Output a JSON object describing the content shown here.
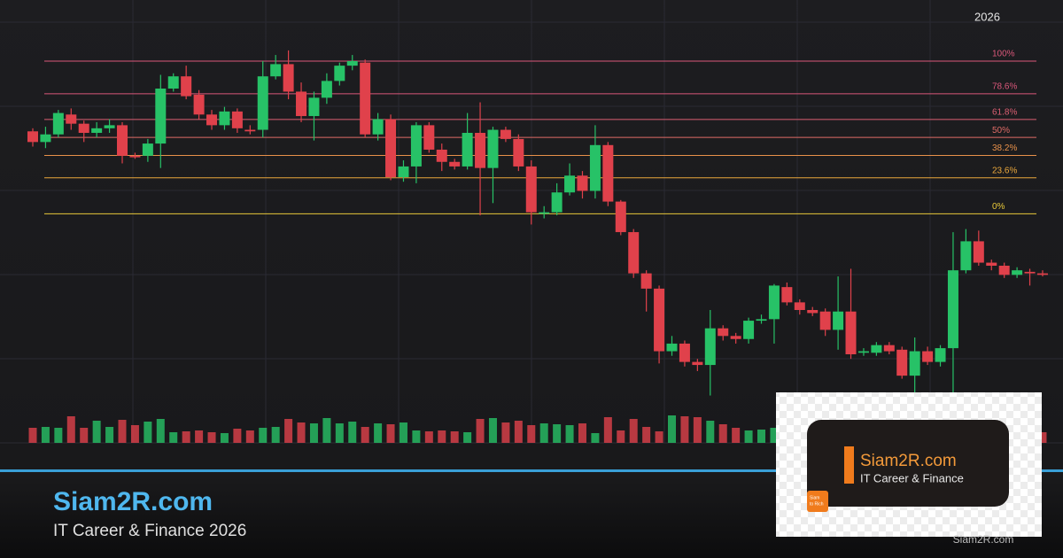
{
  "chart_data": {
    "type": "candlestick",
    "xlabel": "2026",
    "up_color": "#27c267",
    "down_color": "#e0414b",
    "ylim": [
      -150,
      140
    ],
    "open": [
      54,
      47,
      52,
      65,
      59,
      53,
      56,
      58,
      38,
      38,
      46,
      82,
      90,
      78,
      65,
      58,
      67,
      55,
      55,
      90,
      98,
      80,
      64,
      76,
      87,
      97,
      99,
      52,
      62,
      24,
      31,
      58,
      42,
      34,
      31,
      53,
      30,
      55,
      49,
      31,
      0,
      1,
      14,
      25,
      15,
      45,
      8,
      -12,
      -39,
      -49,
      -90,
      -85,
      -97,
      -99,
      -75,
      -80,
      -82,
      -70,
      -69,
      -48,
      -58,
      -63,
      -64,
      -76,
      -64,
      -91,
      -91,
      -86,
      -89,
      -106,
      -90,
      -97,
      -88,
      -37,
      -18,
      -32,
      -34,
      -40,
      -38,
      -39
    ],
    "high": [
      56,
      57,
      68,
      69,
      61,
      60,
      62,
      60,
      40,
      49,
      91,
      92,
      97,
      81,
      68,
      70,
      69,
      58,
      100,
      104,
      107,
      86,
      80,
      92,
      99,
      104,
      101,
      66,
      65,
      35,
      60,
      60,
      46,
      36,
      66,
      73,
      57,
      57,
      52,
      35,
      5,
      20,
      33,
      28,
      58,
      47,
      9,
      -10,
      -37,
      -47,
      -80,
      -83,
      -95,
      -63,
      -73,
      -78,
      -68,
      -66,
      -46,
      -45,
      -56,
      -61,
      -62,
      -41,
      -36,
      -88,
      -84,
      -84,
      -87,
      -81,
      -87,
      -86,
      -12,
      -10,
      -11,
      -30,
      -32,
      -35,
      -36,
      -37
    ],
    "low": [
      44,
      43,
      50,
      55,
      47,
      50,
      53,
      33,
      36,
      34,
      30,
      80,
      75,
      62,
      55,
      55,
      53,
      52,
      50,
      88,
      75,
      60,
      48,
      72,
      84,
      94,
      50,
      48,
      22,
      21,
      20,
      40,
      28,
      29,
      29,
      -1,
      7,
      47,
      28,
      -7,
      -3,
      -1,
      12,
      10,
      10,
      5,
      -14,
      -42,
      -64,
      -98,
      -93,
      -100,
      -103,
      -119,
      -83,
      -85,
      -85,
      -72,
      -85,
      -60,
      -66,
      -67,
      -80,
      -89,
      -95,
      -93,
      -93,
      -92,
      -108,
      -119,
      -99,
      -100,
      -119,
      -39,
      -34,
      -37,
      -42,
      -42,
      -47,
      -41
    ],
    "close": [
      47,
      52,
      66,
      59,
      53,
      56,
      58,
      38,
      37,
      46,
      82,
      90,
      77,
      65,
      58,
      67,
      56,
      54,
      90,
      98,
      80,
      64,
      76,
      87,
      97,
      100,
      52,
      62,
      24,
      31,
      58,
      42,
      34,
      31,
      53,
      30,
      55,
      49,
      31,
      1,
      1,
      14,
      25,
      15,
      45,
      8,
      -12,
      -39,
      -49,
      -90,
      -85,
      -97,
      -99,
      -75,
      -80,
      -82,
      -70,
      -69,
      -47,
      -58,
      -63,
      -65,
      -76,
      -64,
      -92,
      -90,
      -86,
      -90,
      -106,
      -90,
      -97,
      -88,
      -37,
      -18,
      -32,
      -34,
      -40,
      -37,
      -39,
      -40
    ],
    "volume": [
      17,
      18,
      17,
      30,
      17,
      25,
      18,
      26,
      20,
      24,
      27,
      12,
      13,
      14,
      12,
      11,
      16,
      14,
      17,
      18,
      27,
      23,
      22,
      28,
      22,
      24,
      18,
      22,
      21,
      23,
      14,
      13,
      14,
      13,
      12,
      27,
      28,
      23,
      25,
      20,
      22,
      21,
      20,
      22,
      11,
      29,
      14,
      27,
      18,
      13,
      31,
      30,
      29,
      25,
      21,
      17,
      14,
      15,
      17,
      14,
      12,
      15,
      13,
      16,
      12,
      14,
      13,
      15,
      13,
      15,
      12,
      14,
      13,
      16,
      15,
      13,
      12,
      14,
      13,
      12
    ],
    "fib_levels": [
      {
        "value": 100,
        "label": "100%"
      },
      {
        "value": 78.6,
        "label": "78.6%"
      },
      {
        "value": 61.8,
        "label": "61.8%"
      },
      {
        "value": 50,
        "label": "50%"
      },
      {
        "value": 38.2,
        "label": "38.2%"
      },
      {
        "value": 23.6,
        "label": "23.6%"
      },
      {
        "value": 0,
        "label": "0%"
      }
    ],
    "fib_colors": [
      "#d9577a",
      "#d9577a",
      "#dc5f73",
      "#e06c66",
      "#e8914a",
      "#eba83c",
      "#e9c93a"
    ]
  },
  "banner": {
    "title": "Siam2R.com",
    "subtitle": "IT Career & Finance 2026",
    "card_title": "Siam2R.com",
    "card_subtitle": "IT Career & Finance",
    "logo": [
      "Siam",
      "to Rich"
    ],
    "watermark": "Siam2R.com"
  }
}
